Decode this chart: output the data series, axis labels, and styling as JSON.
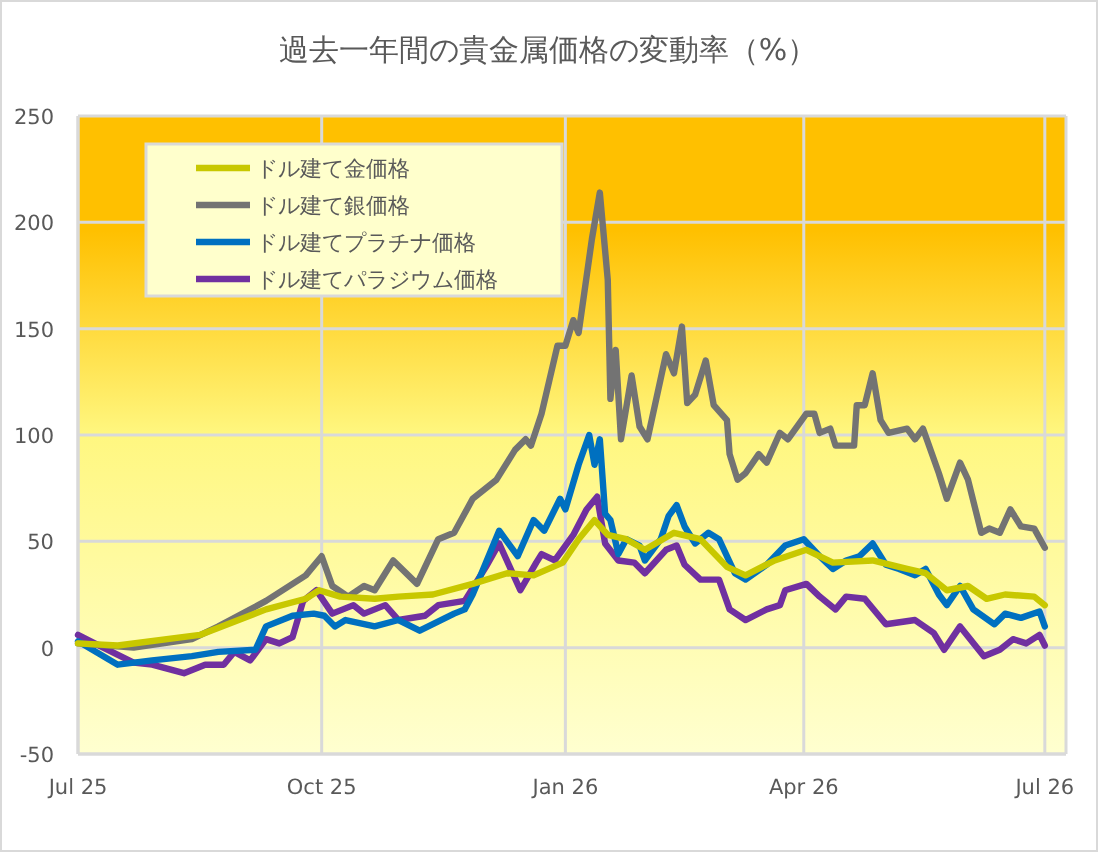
{
  "chart_data": {
    "type": "line",
    "title": "過去一年間の貴金属価格の変動率（%）",
    "xlim": [
      "2025-07-01",
      "2026-07-09"
    ],
    "xticks": [
      {
        "value": "2025-07-01",
        "label": "Jul 25"
      },
      {
        "value": "2025-10-01",
        "label": "Oct 25"
      },
      {
        "value": "2026-01-01",
        "label": "Jan 26"
      },
      {
        "value": "2026-04-01",
        "label": "Apr 26"
      },
      {
        "value": "2026-07-01",
        "label": "Jul 26"
      }
    ],
    "ylim": [
      -50,
      250
    ],
    "yticks": [
      -50,
      0,
      50,
      100,
      150,
      200,
      250
    ],
    "grid": true,
    "legend": "top left",
    "marker": "none",
    "line_style": "solid",
    "series": [
      {
        "name": "ドル建て金価格",
        "color": "#c8c800",
        "x": [
          "2025-07-01",
          "2025-07-16",
          "2025-08-16",
          "2025-09-10",
          "2025-09-25",
          "2025-09-30",
          "2025-10-08",
          "2025-10-21",
          "2025-10-30",
          "2025-11-12",
          "2025-11-27",
          "2025-12-10",
          "2025-12-20",
          "2025-12-31",
          "2026-01-06",
          "2026-01-12",
          "2026-01-17",
          "2026-01-24",
          "2026-01-31",
          "2026-02-11",
          "2026-02-21",
          "2026-03-03",
          "2026-03-10",
          "2026-03-21",
          "2026-04-02",
          "2026-04-12",
          "2026-04-27",
          "2026-05-10",
          "2026-05-17",
          "2026-05-25",
          "2026-06-02",
          "2026-06-09",
          "2026-06-16",
          "2026-06-27",
          "2026-07-01"
        ],
        "values": [
          2,
          1,
          6,
          18,
          23,
          27,
          24,
          23,
          24,
          25,
          30,
          35,
          34,
          40,
          51,
          60,
          53,
          51,
          46,
          54,
          51,
          38,
          34,
          41,
          46,
          40,
          41,
          37,
          35,
          27,
          29,
          23,
          25,
          24,
          20
        ]
      },
      {
        "name": "ドル建て銀価格",
        "color": "#737373",
        "x": [
          "2025-07-01",
          "2025-07-22",
          "2025-08-13",
          "2025-08-23",
          "2025-09-10",
          "2025-09-25",
          "2025-10-01",
          "2025-10-05",
          "2025-10-11",
          "2025-10-17",
          "2025-10-21",
          "2025-10-28",
          "2025-11-06",
          "2025-11-14",
          "2025-11-20",
          "2025-11-27",
          "2025-12-06",
          "2025-12-13",
          "2025-12-17",
          "2025-12-19",
          "2025-12-23",
          "2025-12-29",
          "2026-01-01",
          "2026-01-04",
          "2026-01-06",
          "2026-01-11",
          "2026-01-14",
          "2026-01-17",
          "2026-01-18",
          "2026-01-20",
          "2026-01-22",
          "2026-01-26",
          "2026-01-29",
          "2026-02-01",
          "2026-02-08",
          "2026-02-11",
          "2026-02-14",
          "2026-02-16",
          "2026-02-19",
          "2026-02-23",
          "2026-02-26",
          "2026-03-03",
          "2026-03-04",
          "2026-03-07",
          "2026-03-10",
          "2026-03-15",
          "2026-03-18",
          "2026-03-23",
          "2026-03-26",
          "2026-04-02",
          "2026-04-05",
          "2026-04-07",
          "2026-04-11",
          "2026-04-13",
          "2026-04-20",
          "2026-04-21",
          "2026-04-24",
          "2026-04-27",
          "2026-04-30",
          "2026-05-03",
          "2026-05-10",
          "2026-05-13",
          "2026-05-16",
          "2026-05-22",
          "2026-05-25",
          "2026-05-30",
          "2026-06-02",
          "2026-06-07",
          "2026-06-10",
          "2026-06-14",
          "2026-06-18",
          "2026-06-22",
          "2026-06-27",
          "2026-07-01"
        ],
        "values": [
          2,
          0,
          4,
          10,
          22,
          34,
          43,
          29,
          24,
          29,
          27,
          41,
          30,
          51,
          54,
          70,
          79,
          93,
          98,
          95,
          110,
          142,
          142,
          154,
          148,
          192,
          214,
          173,
          117,
          140,
          98,
          128,
          104,
          98,
          138,
          129,
          151,
          115,
          119,
          135,
          114,
          107,
          91,
          79,
          82,
          91,
          87,
          101,
          98,
          110,
          110,
          101,
          103,
          95,
          95,
          114,
          114,
          129,
          107,
          101,
          103,
          98,
          103,
          82,
          70,
          87,
          79,
          54,
          56,
          54,
          65,
          57,
          56,
          47
        ]
      },
      {
        "name": "ドル建てプラチナ価格",
        "color": "#0070c0",
        "x": [
          "2025-07-01",
          "2025-07-16",
          "2025-07-29",
          "2025-08-13",
          "2025-08-23",
          "2025-09-06",
          "2025-09-10",
          "2025-09-20",
          "2025-09-28",
          "2025-10-02",
          "2025-10-06",
          "2025-10-10",
          "2025-10-21",
          "2025-10-30",
          "2025-11-07",
          "2025-11-20",
          "2025-11-24",
          "2025-11-27",
          "2025-12-07",
          "2025-12-14",
          "2025-12-20",
          "2025-12-24",
          "2025-12-30",
          "2026-01-01",
          "2026-01-06",
          "2026-01-10",
          "2026-01-12",
          "2026-01-14",
          "2026-01-16",
          "2026-01-18",
          "2026-01-21",
          "2026-01-24",
          "2026-01-29",
          "2026-01-31",
          "2026-02-06",
          "2026-02-09",
          "2026-02-12",
          "2026-02-15",
          "2026-02-19",
          "2026-02-24",
          "2026-02-28",
          "2026-03-06",
          "2026-03-10",
          "2026-03-18",
          "2026-03-25",
          "2026-04-01",
          "2026-04-07",
          "2026-04-12",
          "2026-04-17",
          "2026-04-22",
          "2026-04-27",
          "2026-05-02",
          "2026-05-07",
          "2026-05-13",
          "2026-05-17",
          "2026-05-22",
          "2026-05-25",
          "2026-05-30",
          "2026-06-04",
          "2026-06-12",
          "2026-06-16",
          "2026-06-22",
          "2026-06-29",
          "2026-07-01"
        ],
        "values": [
          3,
          -8,
          -6,
          -4,
          -2,
          -1,
          10,
          15,
          16,
          15,
          10,
          13,
          10,
          13,
          8,
          16,
          18,
          25,
          55,
          43,
          60,
          55,
          70,
          65,
          86,
          100,
          86,
          98,
          63,
          60,
          44,
          51,
          48,
          41,
          51,
          62,
          67,
          57,
          49,
          54,
          51,
          35,
          32,
          39,
          48,
          51,
          43,
          37,
          41,
          43,
          49,
          39,
          37,
          34,
          37,
          25,
          20,
          29,
          18,
          11,
          16,
          14,
          17,
          10
        ]
      },
      {
        "name": "ドル建てパラジウム価格",
        "color": "#7030a0",
        "x": [
          "2025-07-01",
          "2025-07-09",
          "2025-07-22",
          "2025-07-29",
          "2025-08-10",
          "2025-08-18",
          "2025-08-25",
          "2025-08-29",
          "2025-09-04",
          "2025-09-10",
          "2025-09-15",
          "2025-09-20",
          "2025-09-24",
          "2025-09-29",
          "2025-10-05",
          "2025-10-13",
          "2025-10-17",
          "2025-10-25",
          "2025-10-30",
          "2025-11-09",
          "2025-11-14",
          "2025-11-24",
          "2025-12-02",
          "2025-12-07",
          "2025-12-15",
          "2025-12-21",
          "2025-12-23",
          "2025-12-28",
          "2026-01-04",
          "2026-01-09",
          "2026-01-13",
          "2026-01-16",
          "2026-01-21",
          "2026-01-27",
          "2026-01-31",
          "2026-02-08",
          "2026-02-12",
          "2026-02-15",
          "2026-02-21",
          "2026-02-28",
          "2026-03-04",
          "2026-03-10",
          "2026-03-18",
          "2026-03-23",
          "2026-03-25",
          "2026-04-02",
          "2026-04-07",
          "2026-04-13",
          "2026-04-17",
          "2026-04-24",
          "2026-05-02",
          "2026-05-13",
          "2026-05-20",
          "2026-05-24",
          "2026-05-30",
          "2026-06-08",
          "2026-06-14",
          "2026-06-19",
          "2026-06-24",
          "2026-06-29",
          "2026-07-01"
        ],
        "values": [
          6,
          1,
          -7,
          -8,
          -12,
          -8,
          -8,
          -2,
          -6,
          4,
          2,
          5,
          22,
          27,
          16,
          20,
          16,
          20,
          13,
          15,
          20,
          22,
          38,
          49,
          27,
          40,
          44,
          41,
          53,
          65,
          71,
          49,
          41,
          40,
          35,
          46,
          48,
          39,
          32,
          32,
          18,
          13,
          18,
          20,
          27,
          30,
          24,
          18,
          24,
          23,
          11,
          13,
          7,
          -1,
          10,
          -4,
          -1,
          4,
          2,
          6,
          1
        ]
      }
    ]
  }
}
